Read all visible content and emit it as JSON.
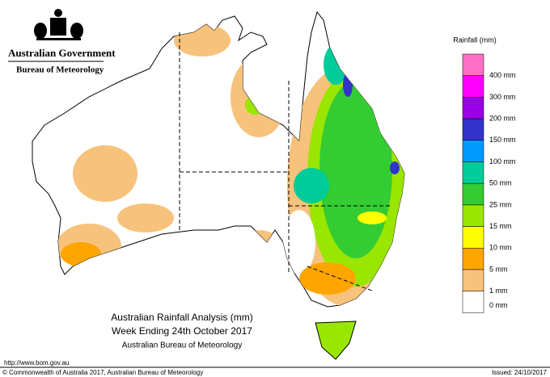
{
  "header": {
    "agency": "Australian Government",
    "bureau": "Bureau of Meteorology"
  },
  "legend": {
    "title": "Rainfall (mm)",
    "colors": [
      "#ff6ec7",
      "#ff00ff",
      "#9900e6",
      "#3333cc",
      "#0099ff",
      "#00cc99",
      "#33cc33",
      "#99e600",
      "#ffff00",
      "#ffa500",
      "#f7c27b",
      "#ffffff"
    ],
    "labels": [
      "400 mm",
      "300 mm",
      "200 mm",
      "150 mm",
      "100 mm",
      "50 mm",
      "25 mm",
      "15 mm",
      "10 mm",
      "5 mm",
      "1 mm",
      "0 mm"
    ]
  },
  "title": {
    "line1": "Australian Rainfall Analysis (mm)",
    "line2": "Week Ending 24th October 2017",
    "line3": "Australian Bureau of Meteorology"
  },
  "footer": {
    "url": "http://www.bom.gov.au",
    "copyright": "© Commonwealth of Australia 2017, Australian Bureau of Meteorology",
    "issued": "Issued: 24/10/2017"
  }
}
